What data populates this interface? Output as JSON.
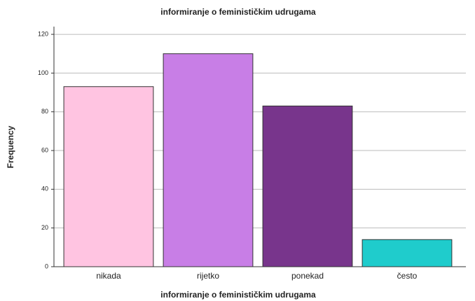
{
  "chart_data": {
    "type": "bar",
    "title": "informiranje o feminističkim udrugama",
    "xlabel": "informiranje o feminističkim udrugama",
    "ylabel": "Frequency",
    "categories": [
      "nikada",
      "rijetko",
      "ponekad",
      "često"
    ],
    "values": [
      93,
      110,
      83,
      14
    ],
    "colors": [
      "#ffc4e1",
      "#c87ee6",
      "#78358c",
      "#1fcccc"
    ],
    "ylim": [
      0,
      124
    ],
    "yticks": [
      0,
      20,
      40,
      60,
      80,
      100,
      120
    ],
    "grid": true
  }
}
